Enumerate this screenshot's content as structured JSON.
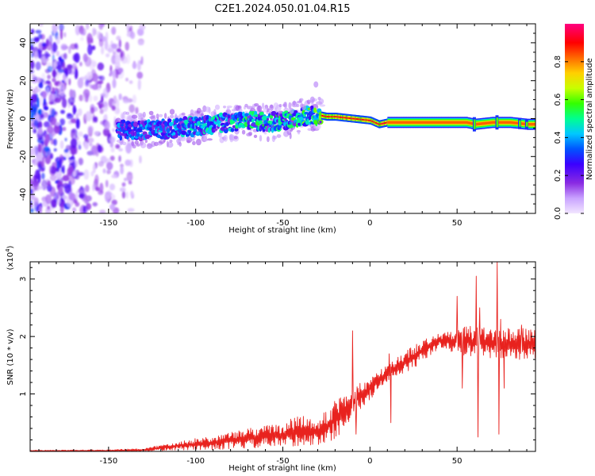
{
  "figure": {
    "title": "C2E1.2024.050.01.04.R15"
  },
  "chart_data": [
    {
      "type": "heatmap",
      "title": "C2E1.2024.050.01.04.R15",
      "xlabel": "Height of straight line (km)",
      "ylabel": "Frequency (Hz)",
      "xlim": [
        -195,
        95
      ],
      "ylim": [
        -50,
        50
      ],
      "x_ticks": [
        -150,
        -100,
        -50,
        0,
        50
      ],
      "y_ticks": [
        -40,
        -20,
        0,
        20,
        40
      ],
      "colorbar": {
        "label": "Normalized spectral amplitude",
        "range": [
          0,
          1
        ],
        "ticks": [
          0.0,
          0.2,
          0.4,
          0.6,
          0.8
        ],
        "colormap": [
          "#f2e6ff",
          "#c9a3ff",
          "#8a2be2",
          "#3a00ff",
          "#0055ff",
          "#00c8ff",
          "#00ff90",
          "#33ff00",
          "#c8ff00",
          "#ffd000",
          "#ff6a00",
          "#ff0000",
          "#ff0080"
        ]
      },
      "noise_region": {
        "x": [
          -195,
          -130
        ],
        "y": [
          -50,
          50
        ]
      },
      "ridge": [
        {
          "x": -140,
          "y": -6
        },
        {
          "x": -125,
          "y": -6
        },
        {
          "x": -110,
          "y": -5
        },
        {
          "x": -100,
          "y": -4
        },
        {
          "x": -90,
          "y": -3
        },
        {
          "x": -80,
          "y": -2
        },
        {
          "x": -70,
          "y": -1
        },
        {
          "x": -60,
          "y": -2
        },
        {
          "x": -50,
          "y": -1
        },
        {
          "x": -40,
          "y": 1
        },
        {
          "x": -30,
          "y": 2
        },
        {
          "x": -25,
          "y": 1
        },
        {
          "x": -20,
          "y": 1
        },
        {
          "x": -10,
          "y": 0
        },
        {
          "x": 0,
          "y": -1
        },
        {
          "x": 5,
          "y": -3
        },
        {
          "x": 10,
          "y": -2
        },
        {
          "x": 30,
          "y": -2
        },
        {
          "x": 55,
          "y": -2
        },
        {
          "x": 60,
          "y": -3
        },
        {
          "x": 70,
          "y": -2
        },
        {
          "x": 80,
          "y": -2
        },
        {
          "x": 90,
          "y": -3
        },
        {
          "x": 95,
          "y": -3
        }
      ],
      "stable_band": {
        "x": [
          10,
          95
        ],
        "y": -2
      }
    },
    {
      "type": "line",
      "xlabel": "Height of straight line (km)",
      "ylabel": "SNR (10 * v/v)",
      "yscale_label": "(x10",
      "yscale_exp": "4",
      "yscale_close": ")",
      "xlim": [
        -195,
        95
      ],
      "ylim": [
        0,
        3.3
      ],
      "x_ticks": [
        -150,
        -100,
        -50,
        0,
        50
      ],
      "y_ticks": [
        1,
        2,
        3
      ],
      "series": [
        {
          "color": "#e8221e",
          "envelope": [
            {
              "x": -195,
              "lo": 0.0,
              "hi": 0.02
            },
            {
              "x": -150,
              "lo": 0.0,
              "hi": 0.03
            },
            {
              "x": -130,
              "lo": 0.0,
              "hi": 0.05
            },
            {
              "x": -110,
              "lo": 0.02,
              "hi": 0.18
            },
            {
              "x": -90,
              "lo": 0.03,
              "hi": 0.27
            },
            {
              "x": -70,
              "lo": 0.05,
              "hi": 0.4
            },
            {
              "x": -50,
              "lo": 0.07,
              "hi": 0.5
            },
            {
              "x": -40,
              "lo": 0.1,
              "hi": 0.65
            },
            {
              "x": -30,
              "lo": 0.1,
              "hi": 0.55
            },
            {
              "x": -20,
              "lo": 0.2,
              "hi": 0.9
            },
            {
              "x": -10,
              "lo": 0.6,
              "hi": 1.1
            },
            {
              "x": 0,
              "lo": 0.9,
              "hi": 1.3
            },
            {
              "x": 10,
              "lo": 1.2,
              "hi": 1.5
            },
            {
              "x": 20,
              "lo": 1.35,
              "hi": 1.75
            },
            {
              "x": 30,
              "lo": 1.55,
              "hi": 1.95
            },
            {
              "x": 40,
              "lo": 1.8,
              "hi": 2.05
            },
            {
              "x": 55,
              "lo": 1.65,
              "hi": 2.2
            },
            {
              "x": 70,
              "lo": 1.6,
              "hi": 2.15
            },
            {
              "x": 95,
              "lo": 1.6,
              "hi": 2.15
            }
          ],
          "spikes": [
            {
              "x": -43,
              "y": 0.1
            },
            {
              "x": -10,
              "y": 2.1
            },
            {
              "x": -8,
              "y": 0.3
            },
            {
              "x": 12,
              "y": 0.5
            },
            {
              "x": 11,
              "y": 1.7
            },
            {
              "x": 50,
              "y": 2.7
            },
            {
              "x": 53,
              "y": 1.1
            },
            {
              "x": 61,
              "y": 3.05
            },
            {
              "x": 62,
              "y": 0.25
            },
            {
              "x": 63,
              "y": 2.5
            },
            {
              "x": 73,
              "y": 3.3
            },
            {
              "x": 74,
              "y": 0.3
            },
            {
              "x": 75,
              "y": 2.3
            },
            {
              "x": 77,
              "y": 1.1
            },
            {
              "x": 87,
              "y": 2.2
            }
          ]
        }
      ]
    }
  ]
}
